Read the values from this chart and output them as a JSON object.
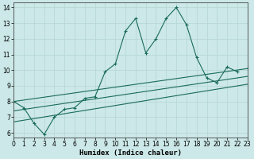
{
  "xlabel": "Humidex (Indice chaleur)",
  "x": [
    0,
    1,
    2,
    3,
    4,
    5,
    6,
    7,
    8,
    9,
    10,
    11,
    12,
    13,
    14,
    15,
    16,
    17,
    18,
    19,
    20,
    21,
    22,
    23
  ],
  "line_jagged": [
    8.0,
    7.6,
    6.6,
    5.9,
    7.0,
    7.5,
    7.6,
    8.2,
    8.3,
    9.9,
    10.4,
    12.5,
    13.3,
    11.1,
    12.0,
    13.3,
    14.0,
    12.9,
    10.8,
    9.5,
    9.2,
    10.2,
    9.9,
    null
  ],
  "line_upper": [
    [
      0,
      8.0
    ],
    [
      23,
      10.1
    ]
  ],
  "line_mid": [
    [
      0,
      7.4
    ],
    [
      23,
      9.6
    ]
  ],
  "line_lower": [
    [
      0,
      6.7
    ],
    [
      23,
      9.1
    ]
  ],
  "color": "#1a6b5a",
  "bg_color": "#cce8e8",
  "grid_color": "#b8d8d8",
  "xlim": [
    0,
    23
  ],
  "ylim": [
    5.7,
    14.3
  ],
  "yticks": [
    6,
    7,
    8,
    9,
    10,
    11,
    12,
    13,
    14
  ],
  "xticks": [
    0,
    1,
    2,
    3,
    4,
    5,
    6,
    7,
    8,
    9,
    10,
    11,
    12,
    13,
    14,
    15,
    16,
    17,
    18,
    19,
    20,
    21,
    22,
    23
  ],
  "tick_fontsize": 5.5,
  "xlabel_fontsize": 6.5
}
